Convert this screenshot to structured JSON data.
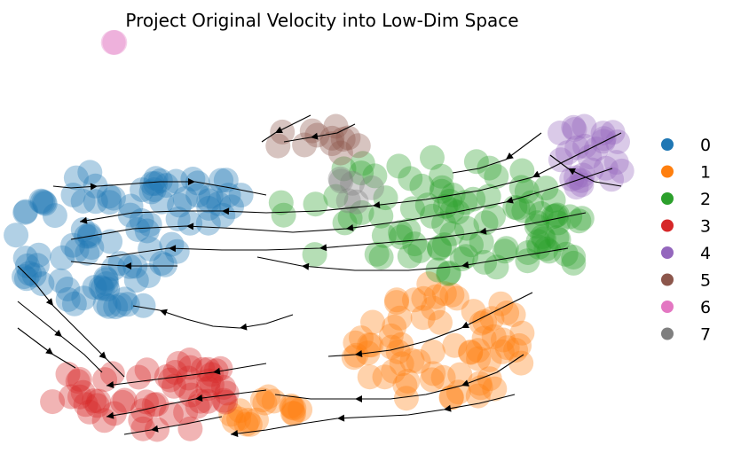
{
  "chart_data": {
    "type": "scatter",
    "title": "Project Original Velocity into Low-Dim Space",
    "xlabel": "",
    "ylabel": "",
    "axes_visible": false,
    "grid": false,
    "overlay": "velocity-streamlines",
    "legend_placement": "right",
    "point_alpha": 0.35,
    "series": [
      {
        "name": "0",
        "color": "#1f77b4"
      },
      {
        "name": "1",
        "color": "#ff7f0e"
      },
      {
        "name": "2",
        "color": "#2ca02c"
      },
      {
        "name": "3",
        "color": "#d62728"
      },
      {
        "name": "4",
        "color": "#9467bd"
      },
      {
        "name": "5",
        "color": "#8c564b"
      },
      {
        "name": "6",
        "color": "#e377c2"
      },
      {
        "name": "7",
        "color": "#7f7f7f"
      }
    ]
  }
}
